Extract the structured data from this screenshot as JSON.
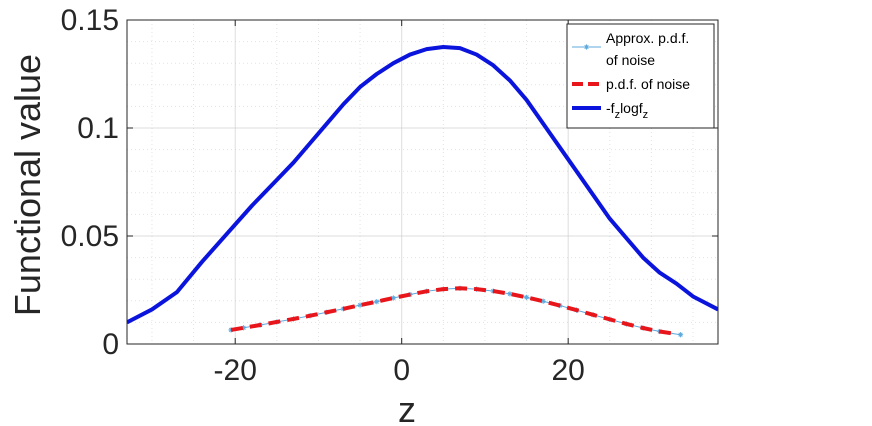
{
  "chart_data": {
    "type": "line",
    "xlabel": "z",
    "ylabel": "Functional value",
    "xlim": [
      -33,
      38
    ],
    "ylim": [
      0,
      0.15
    ],
    "xticks": [
      -20,
      0,
      20
    ],
    "yticks": [
      0,
      0.05,
      0.1,
      0.15
    ],
    "xtick_labels": [
      "-20",
      "0",
      "20"
    ],
    "ytick_labels": [
      "0",
      "0.05",
      "0.1",
      "0.15"
    ],
    "grid": true,
    "legend_position": "top-right",
    "series": [
      {
        "name": "Approx. p.d.f. of noise",
        "legend_lines": [
          "Approx. p.d.f.",
          "of noise"
        ],
        "color": "#5ea9dd",
        "style": "thin line with star markers",
        "x": [
          -20.5,
          -19,
          -17,
          -15,
          -13,
          -11,
          -9,
          -7,
          -5,
          -3,
          -1,
          1,
          3,
          5,
          7,
          9,
          11,
          13,
          15,
          17,
          19,
          21,
          23,
          25,
          27,
          29,
          31,
          33.5
        ],
        "y": [
          0.0065,
          0.0075,
          0.0088,
          0.0102,
          0.0116,
          0.0131,
          0.0147,
          0.0163,
          0.018,
          0.0196,
          0.0213,
          0.0229,
          0.0244,
          0.0254,
          0.0258,
          0.0254,
          0.0245,
          0.0232,
          0.0216,
          0.0198,
          0.0178,
          0.0157,
          0.0135,
          0.0114,
          0.0093,
          0.0074,
          0.0058,
          0.0043
        ]
      },
      {
        "name": "p.d.f. of noise",
        "color": "#e8161b",
        "style": "thick dashed line",
        "x": [
          -20.5,
          -19,
          -17,
          -15,
          -13,
          -11,
          -9,
          -7,
          -5,
          -3,
          -1,
          1,
          3,
          5,
          7,
          9,
          11,
          13,
          15,
          17,
          19,
          21,
          23,
          25,
          27,
          29,
          31,
          33
        ],
        "y": [
          0.0065,
          0.0075,
          0.0088,
          0.0102,
          0.0116,
          0.0131,
          0.0147,
          0.0163,
          0.018,
          0.0196,
          0.0213,
          0.0229,
          0.0244,
          0.0254,
          0.0258,
          0.0254,
          0.0245,
          0.0232,
          0.0216,
          0.0198,
          0.0178,
          0.0157,
          0.0135,
          0.0114,
          0.0093,
          0.0074,
          0.0058,
          0.0046
        ]
      },
      {
        "name": "-f_z logf_z",
        "legend_parts": [
          "-f",
          "z",
          "logf",
          "z"
        ],
        "color": "#0a14dd",
        "style": "thick solid line",
        "x": [
          -33,
          -30,
          -27,
          -24,
          -21,
          -18,
          -15,
          -13,
          -11,
          -9,
          -7,
          -5,
          -3,
          -1,
          1,
          3,
          5,
          7,
          9,
          11,
          13,
          15,
          17,
          19,
          21,
          23,
          25,
          27,
          29,
          31,
          33,
          35,
          38
        ],
        "y": [
          0.01,
          0.016,
          0.024,
          0.038,
          0.051,
          0.064,
          0.076,
          0.084,
          0.093,
          0.102,
          0.111,
          0.119,
          0.125,
          0.13,
          0.134,
          0.1365,
          0.1375,
          0.137,
          0.134,
          0.129,
          0.122,
          0.113,
          0.102,
          0.091,
          0.08,
          0.069,
          0.058,
          0.049,
          0.04,
          0.033,
          0.028,
          0.022,
          0.016
        ]
      }
    ]
  }
}
